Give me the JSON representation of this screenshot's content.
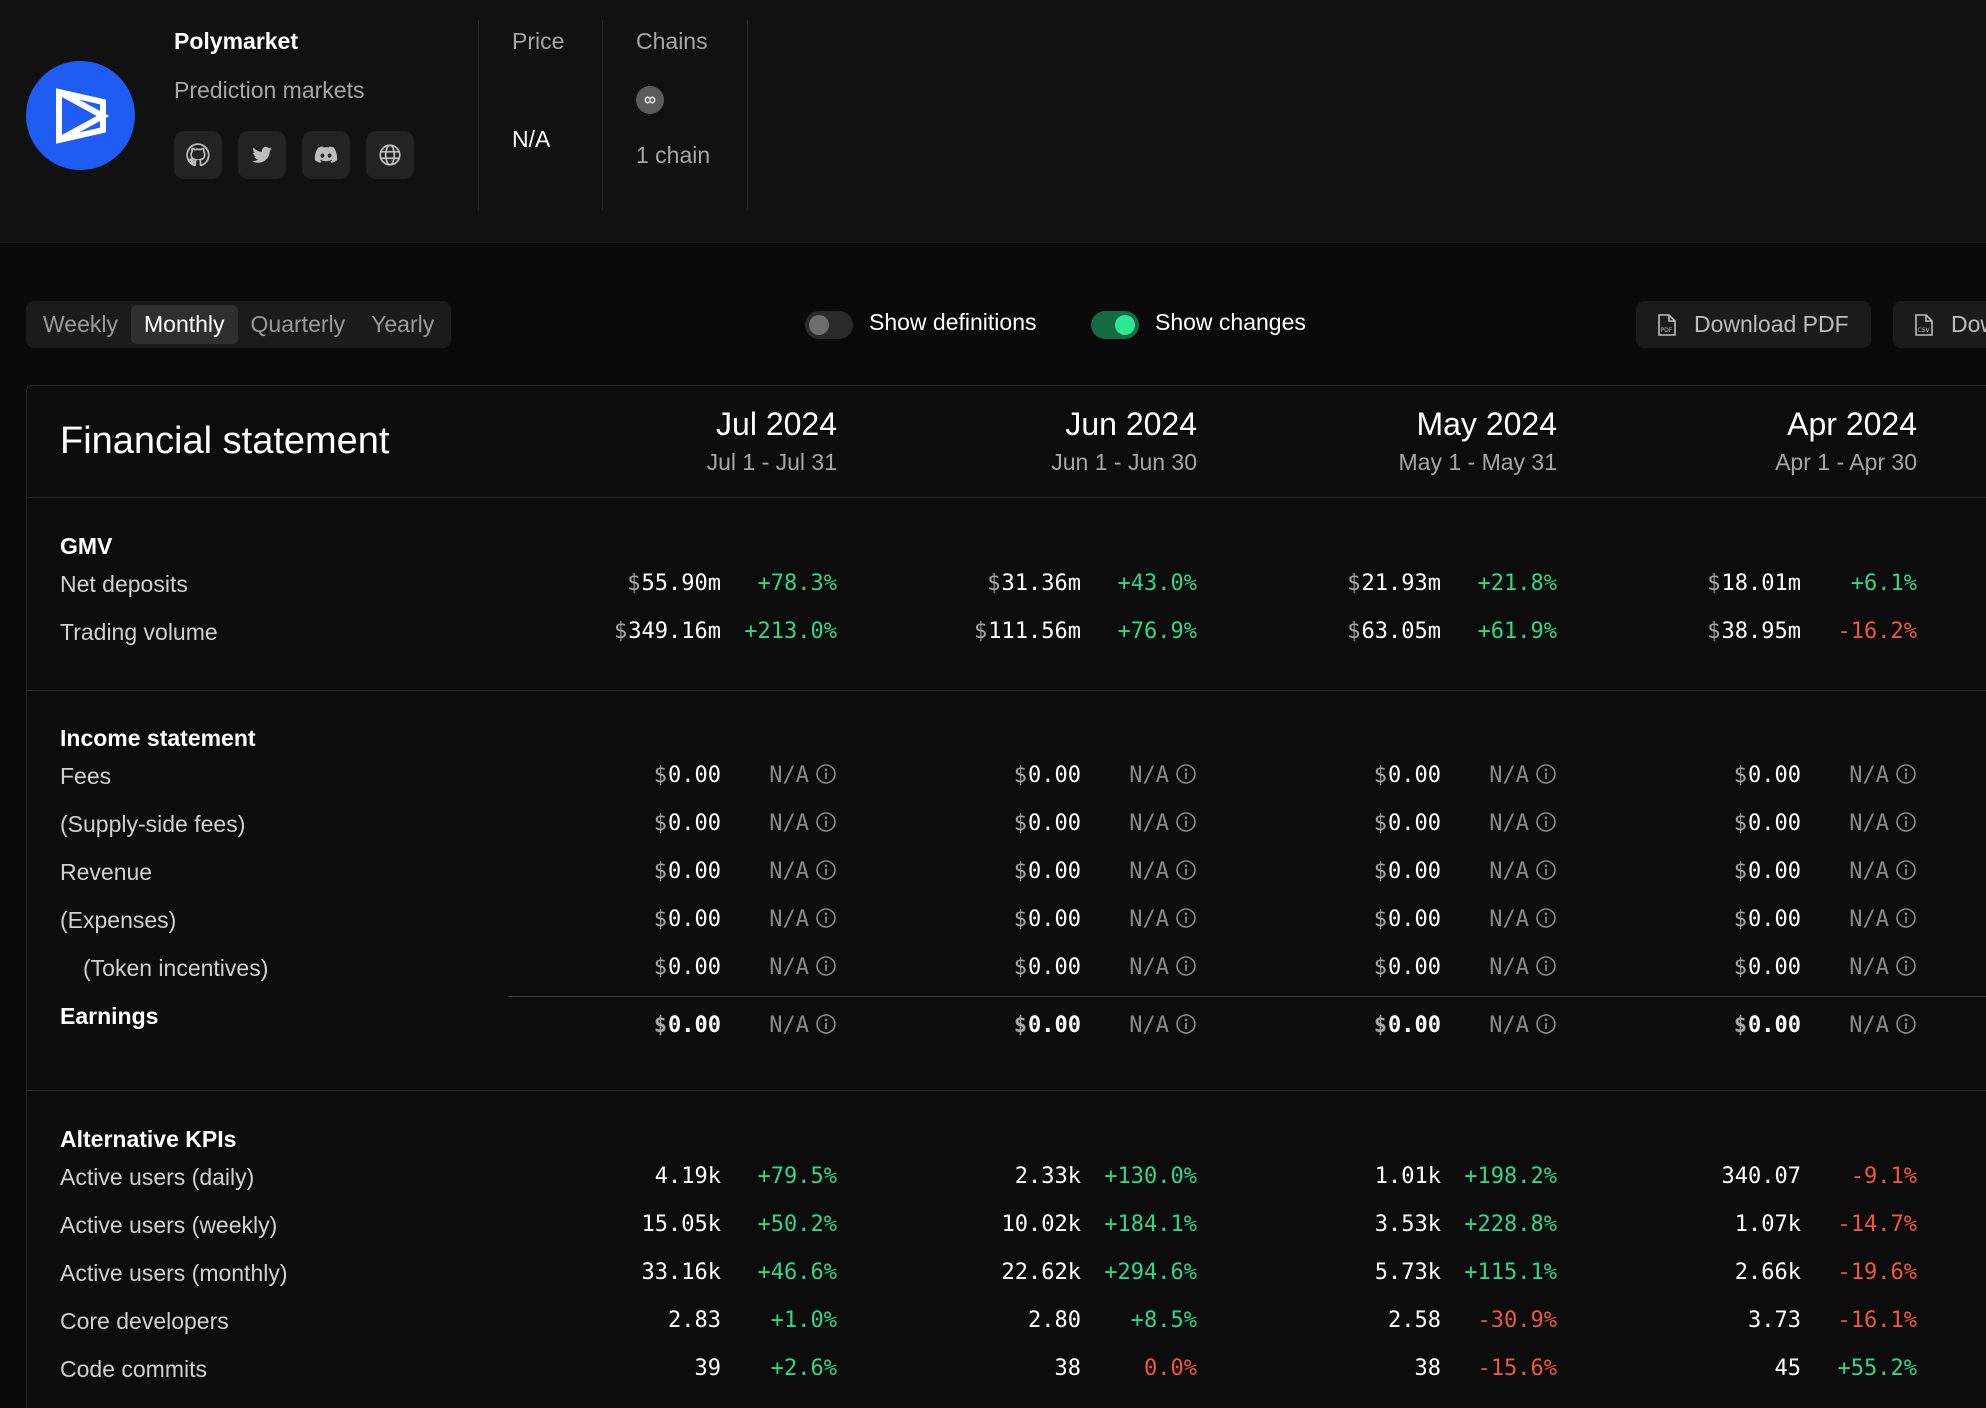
{
  "project": {
    "name": "Polymarket",
    "category": "Prediction markets",
    "socials": [
      {
        "icon": "github-icon"
      },
      {
        "icon": "twitter-icon"
      },
      {
        "icon": "discord-icon"
      },
      {
        "icon": "globe-icon"
      }
    ],
    "price_label": "Price",
    "price_value": "N/A",
    "chains_label": "Chains",
    "chains_value": "1 chain"
  },
  "toolbar": {
    "periods": [
      "Weekly",
      "Monthly",
      "Quarterly",
      "Yearly"
    ],
    "active_period": "Monthly",
    "show_definitions_label": "Show definitions",
    "show_definitions_on": false,
    "show_changes_label": "Show changes",
    "show_changes_on": true,
    "download_pdf_label": "Download PDF",
    "download_csv_label": "Dow"
  },
  "colors": {
    "positive": "#2fd78f",
    "negative": "#f0583a",
    "logo": "#1f5cf3",
    "toggle_on": "#30e596"
  },
  "statement": {
    "title": "Financial statement",
    "columns": [
      {
        "month": "Jul 2024",
        "range": "Jul 1 - Jul 31"
      },
      {
        "month": "Jun 2024",
        "range": "Jun 1 - Jun 30"
      },
      {
        "month": "May 2024",
        "range": "May 1 - May 31"
      },
      {
        "month": "Apr 2024",
        "range": "Apr 1 - Apr 30"
      }
    ],
    "sections": [
      {
        "title": "GMV",
        "rows": [
          {
            "label": "Net deposits",
            "currency": true,
            "cells": [
              {
                "value": "55.90m",
                "change": "+78.3%",
                "dir": "pos"
              },
              {
                "value": "31.36m",
                "change": "+43.0%",
                "dir": "pos"
              },
              {
                "value": "21.93m",
                "change": "+21.8%",
                "dir": "pos"
              },
              {
                "value": "18.01m",
                "change": "+6.1%",
                "dir": "pos"
              }
            ]
          },
          {
            "label": "Trading volume",
            "currency": true,
            "cells": [
              {
                "value": "349.16m",
                "change": "+213.0%",
                "dir": "pos"
              },
              {
                "value": "111.56m",
                "change": "+76.9%",
                "dir": "pos"
              },
              {
                "value": "63.05m",
                "change": "+61.9%",
                "dir": "pos"
              },
              {
                "value": "38.95m",
                "change": "-16.2%",
                "dir": "neg"
              }
            ]
          }
        ]
      },
      {
        "title": "Income statement",
        "rows": [
          {
            "label": "Fees",
            "currency": true,
            "cells": [
              {
                "value": "0.00",
                "change": "N/A",
                "dir": "na"
              },
              {
                "value": "0.00",
                "change": "N/A",
                "dir": "na"
              },
              {
                "value": "0.00",
                "change": "N/A",
                "dir": "na"
              },
              {
                "value": "0.00",
                "change": "N/A",
                "dir": "na"
              }
            ]
          },
          {
            "label": "(Supply-side fees)",
            "currency": true,
            "cells": [
              {
                "value": "0.00",
                "change": "N/A",
                "dir": "na"
              },
              {
                "value": "0.00",
                "change": "N/A",
                "dir": "na"
              },
              {
                "value": "0.00",
                "change": "N/A",
                "dir": "na"
              },
              {
                "value": "0.00",
                "change": "N/A",
                "dir": "na"
              }
            ]
          },
          {
            "label": "Revenue",
            "currency": true,
            "cells": [
              {
                "value": "0.00",
                "change": "N/A",
                "dir": "na"
              },
              {
                "value": "0.00",
                "change": "N/A",
                "dir": "na"
              },
              {
                "value": "0.00",
                "change": "N/A",
                "dir": "na"
              },
              {
                "value": "0.00",
                "change": "N/A",
                "dir": "na"
              }
            ]
          },
          {
            "label": "(Expenses)",
            "currency": true,
            "cells": [
              {
                "value": "0.00",
                "change": "N/A",
                "dir": "na"
              },
              {
                "value": "0.00",
                "change": "N/A",
                "dir": "na"
              },
              {
                "value": "0.00",
                "change": "N/A",
                "dir": "na"
              },
              {
                "value": "0.00",
                "change": "N/A",
                "dir": "na"
              }
            ]
          },
          {
            "label": "(Token incentives)",
            "currency": true,
            "indent": true,
            "cells": [
              {
                "value": "0.00",
                "change": "N/A",
                "dir": "na"
              },
              {
                "value": "0.00",
                "change": "N/A",
                "dir": "na"
              },
              {
                "value": "0.00",
                "change": "N/A",
                "dir": "na"
              },
              {
                "value": "0.00",
                "change": "N/A",
                "dir": "na"
              }
            ]
          },
          {
            "label": "Earnings",
            "currency": true,
            "bold": true,
            "cells": [
              {
                "value": "0.00",
                "change": "N/A",
                "dir": "na"
              },
              {
                "value": "0.00",
                "change": "N/A",
                "dir": "na"
              },
              {
                "value": "0.00",
                "change": "N/A",
                "dir": "na"
              },
              {
                "value": "0.00",
                "change": "N/A",
                "dir": "na"
              }
            ]
          }
        ]
      },
      {
        "title": "Alternative KPIs",
        "rows": [
          {
            "label": "Active users (daily)",
            "currency": false,
            "cells": [
              {
                "value": "4.19k",
                "change": "+79.5%",
                "dir": "pos"
              },
              {
                "value": "2.33k",
                "change": "+130.0%",
                "dir": "pos"
              },
              {
                "value": "1.01k",
                "change": "+198.2%",
                "dir": "pos"
              },
              {
                "value": "340.07",
                "change": "-9.1%",
                "dir": "neg"
              }
            ]
          },
          {
            "label": "Active users (weekly)",
            "currency": false,
            "cells": [
              {
                "value": "15.05k",
                "change": "+50.2%",
                "dir": "pos"
              },
              {
                "value": "10.02k",
                "change": "+184.1%",
                "dir": "pos"
              },
              {
                "value": "3.53k",
                "change": "+228.8%",
                "dir": "pos"
              },
              {
                "value": "1.07k",
                "change": "-14.7%",
                "dir": "neg"
              }
            ]
          },
          {
            "label": "Active users (monthly)",
            "currency": false,
            "cells": [
              {
                "value": "33.16k",
                "change": "+46.6%",
                "dir": "pos"
              },
              {
                "value": "22.62k",
                "change": "+294.6%",
                "dir": "pos"
              },
              {
                "value": "5.73k",
                "change": "+115.1%",
                "dir": "pos"
              },
              {
                "value": "2.66k",
                "change": "-19.6%",
                "dir": "neg"
              }
            ]
          },
          {
            "label": "Core developers",
            "currency": false,
            "cells": [
              {
                "value": "2.83",
                "change": "+1.0%",
                "dir": "pos"
              },
              {
                "value": "2.80",
                "change": "+8.5%",
                "dir": "pos"
              },
              {
                "value": "2.58",
                "change": "-30.9%",
                "dir": "neg"
              },
              {
                "value": "3.73",
                "change": "-16.1%",
                "dir": "neg"
              }
            ]
          },
          {
            "label": "Code commits",
            "currency": false,
            "cells": [
              {
                "value": "39",
                "change": "+2.6%",
                "dir": "pos"
              },
              {
                "value": "38",
                "change": "0.0%",
                "dir": "neg"
              },
              {
                "value": "38",
                "change": "-15.6%",
                "dir": "neg"
              },
              {
                "value": "45",
                "change": "+55.2%",
                "dir": "pos"
              }
            ]
          }
        ]
      }
    ]
  }
}
